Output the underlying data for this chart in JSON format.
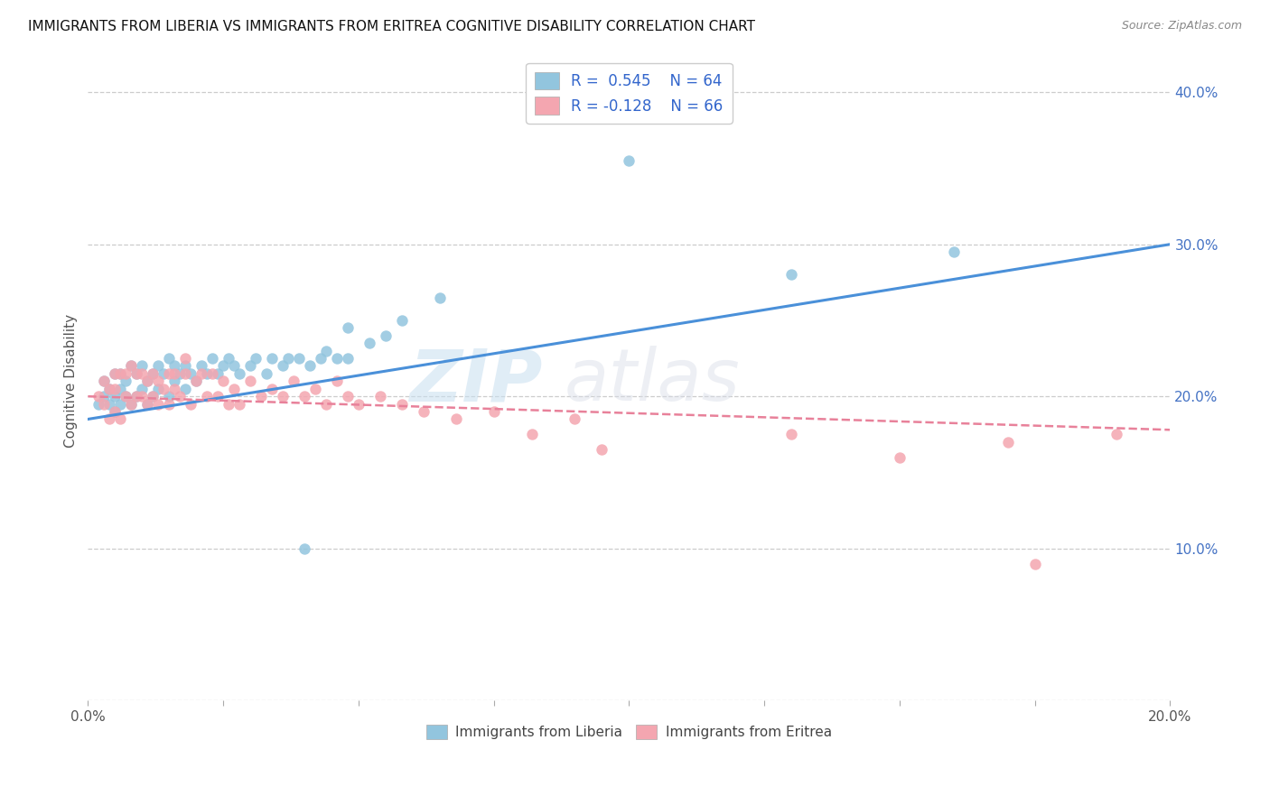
{
  "title": "IMMIGRANTS FROM LIBERIA VS IMMIGRANTS FROM ERITREA COGNITIVE DISABILITY CORRELATION CHART",
  "source": "Source: ZipAtlas.com",
  "ylabel": "Cognitive Disability",
  "y_ticks": [
    0.0,
    0.1,
    0.2,
    0.3,
    0.4
  ],
  "y_tick_labels": [
    "",
    "10.0%",
    "20.0%",
    "30.0%",
    "40.0%"
  ],
  "xlim": [
    0.0,
    0.2
  ],
  "ylim": [
    0.0,
    0.42
  ],
  "color_liberia": "#92c5de",
  "color_eritrea": "#f4a6b0",
  "color_liberia_line": "#4a90d9",
  "color_eritrea_line": "#e8819a",
  "watermark_zip": "ZIP",
  "watermark_atlas": "atlas",
  "liberia_scatter_x": [
    0.002,
    0.003,
    0.003,
    0.004,
    0.004,
    0.005,
    0.005,
    0.005,
    0.006,
    0.006,
    0.006,
    0.007,
    0.007,
    0.008,
    0.008,
    0.009,
    0.009,
    0.01,
    0.01,
    0.011,
    0.011,
    0.012,
    0.012,
    0.013,
    0.013,
    0.014,
    0.015,
    0.015,
    0.016,
    0.016,
    0.017,
    0.018,
    0.018,
    0.019,
    0.02,
    0.021,
    0.022,
    0.023,
    0.024,
    0.025,
    0.026,
    0.027,
    0.028,
    0.03,
    0.031,
    0.033,
    0.034,
    0.036,
    0.037,
    0.039,
    0.041,
    0.043,
    0.044,
    0.046,
    0.048,
    0.052,
    0.055,
    0.058,
    0.04,
    0.065,
    0.048,
    0.1,
    0.13,
    0.16
  ],
  "liberia_scatter_y": [
    0.195,
    0.2,
    0.21,
    0.195,
    0.205,
    0.19,
    0.2,
    0.215,
    0.195,
    0.205,
    0.215,
    0.2,
    0.21,
    0.195,
    0.22,
    0.2,
    0.215,
    0.205,
    0.22,
    0.195,
    0.21,
    0.2,
    0.215,
    0.205,
    0.22,
    0.215,
    0.2,
    0.225,
    0.21,
    0.22,
    0.215,
    0.205,
    0.22,
    0.215,
    0.21,
    0.22,
    0.215,
    0.225,
    0.215,
    0.22,
    0.225,
    0.22,
    0.215,
    0.22,
    0.225,
    0.215,
    0.225,
    0.22,
    0.225,
    0.225,
    0.22,
    0.225,
    0.23,
    0.225,
    0.225,
    0.235,
    0.24,
    0.25,
    0.1,
    0.265,
    0.245,
    0.355,
    0.28,
    0.295
  ],
  "eritrea_scatter_x": [
    0.002,
    0.003,
    0.003,
    0.004,
    0.004,
    0.005,
    0.005,
    0.005,
    0.006,
    0.006,
    0.007,
    0.007,
    0.008,
    0.008,
    0.009,
    0.009,
    0.01,
    0.01,
    0.011,
    0.011,
    0.012,
    0.012,
    0.013,
    0.013,
    0.014,
    0.015,
    0.015,
    0.016,
    0.016,
    0.017,
    0.018,
    0.018,
    0.019,
    0.02,
    0.021,
    0.022,
    0.023,
    0.024,
    0.025,
    0.026,
    0.027,
    0.028,
    0.03,
    0.032,
    0.034,
    0.036,
    0.038,
    0.04,
    0.042,
    0.044,
    0.046,
    0.048,
    0.05,
    0.054,
    0.058,
    0.062,
    0.068,
    0.075,
    0.082,
    0.09,
    0.095,
    0.13,
    0.15,
    0.17,
    0.175,
    0.19
  ],
  "eritrea_scatter_y": [
    0.2,
    0.195,
    0.21,
    0.185,
    0.205,
    0.215,
    0.19,
    0.205,
    0.185,
    0.215,
    0.2,
    0.215,
    0.195,
    0.22,
    0.2,
    0.215,
    0.2,
    0.215,
    0.195,
    0.21,
    0.2,
    0.215,
    0.195,
    0.21,
    0.205,
    0.195,
    0.215,
    0.205,
    0.215,
    0.2,
    0.215,
    0.225,
    0.195,
    0.21,
    0.215,
    0.2,
    0.215,
    0.2,
    0.21,
    0.195,
    0.205,
    0.195,
    0.21,
    0.2,
    0.205,
    0.2,
    0.21,
    0.2,
    0.205,
    0.195,
    0.21,
    0.2,
    0.195,
    0.2,
    0.195,
    0.19,
    0.185,
    0.19,
    0.175,
    0.185,
    0.165,
    0.175,
    0.16,
    0.17,
    0.09,
    0.175
  ],
  "liberia_trendline_x": [
    0.0,
    0.2
  ],
  "liberia_trendline_y": [
    0.185,
    0.3
  ],
  "eritrea_trendline_x": [
    0.0,
    0.2
  ],
  "eritrea_trendline_y": [
    0.2,
    0.178
  ]
}
